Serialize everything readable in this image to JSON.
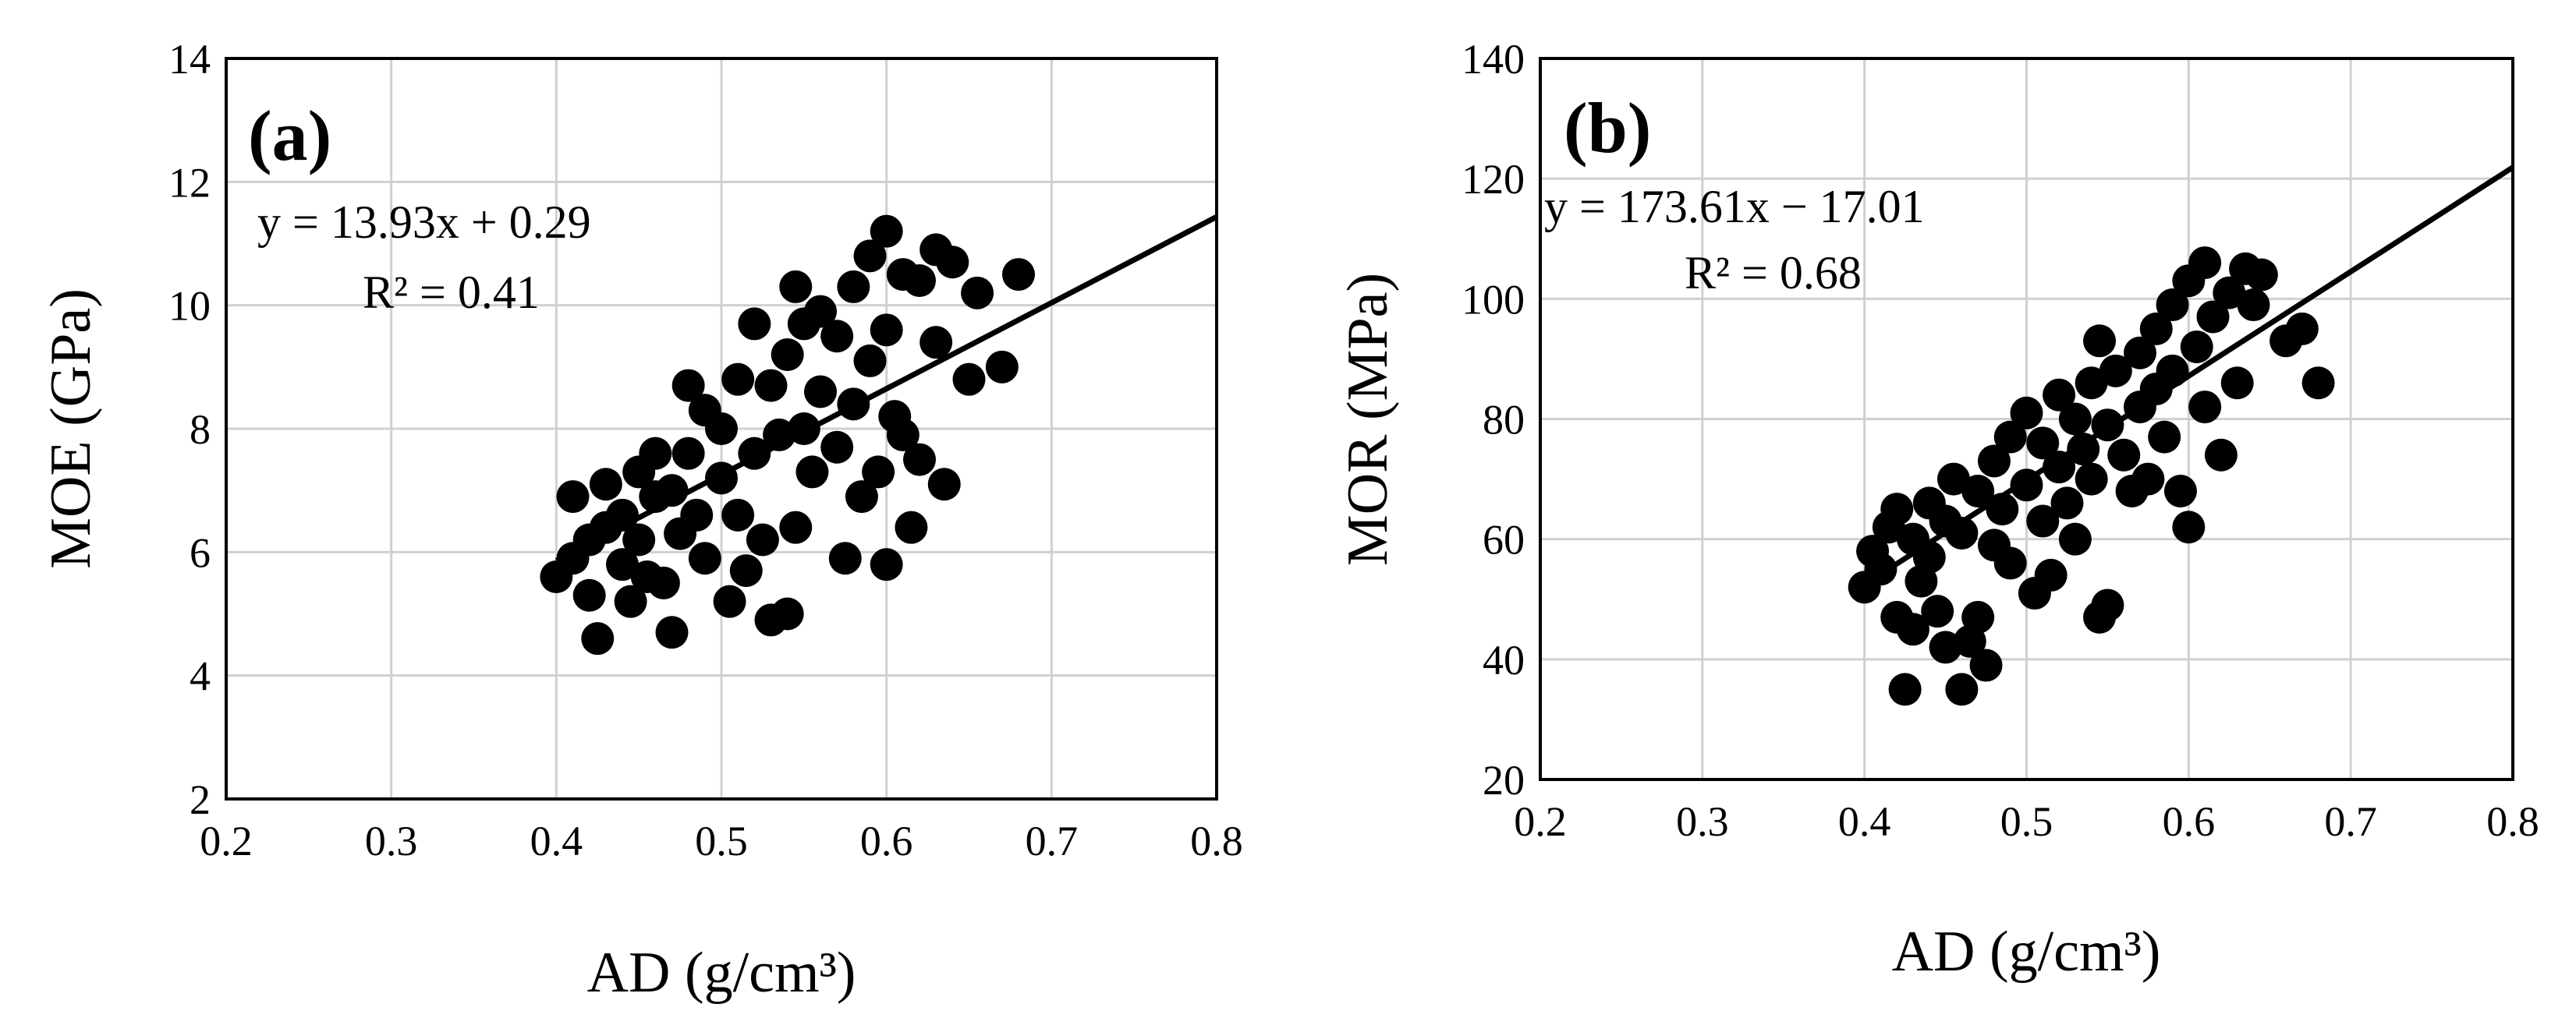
{
  "chart_data": [
    {
      "type": "scatter",
      "panel_label": "(a)",
      "xlabel": "AD (g/cm³)",
      "ylabel": "MOE (GPa)",
      "xlim": [
        0.2,
        0.8
      ],
      "ylim": [
        2,
        14
      ],
      "xticks": [
        "0.2",
        "0.3",
        "0.4",
        "0.5",
        "0.6",
        "0.7",
        "0.8"
      ],
      "yticks": [
        "2",
        "4",
        "6",
        "8",
        "10",
        "12",
        "14"
      ],
      "grid": true,
      "equation": "y = 13.93x + 0.29",
      "r2": "R² = 0.41",
      "trendline": {
        "slope": 13.93,
        "intercept": 0.29,
        "x_range": [
          0.4,
          0.8
        ]
      },
      "series": [
        {
          "points": [
            [
              0.4,
              5.6
            ],
            [
              0.41,
              5.9
            ],
            [
              0.41,
              6.9
            ],
            [
              0.42,
              6.2
            ],
            [
              0.42,
              5.3
            ],
            [
              0.425,
              4.6
            ],
            [
              0.43,
              7.1
            ],
            [
              0.43,
              6.4
            ],
            [
              0.44,
              5.8
            ],
            [
              0.44,
              6.6
            ],
            [
              0.445,
              5.2
            ],
            [
              0.45,
              7.3
            ],
            [
              0.45,
              6.2
            ],
            [
              0.455,
              5.6
            ],
            [
              0.46,
              7.6
            ],
            [
              0.46,
              6.9
            ],
            [
              0.465,
              5.5
            ],
            [
              0.47,
              4.7
            ],
            [
              0.47,
              7.0
            ],
            [
              0.475,
              6.3
            ],
            [
              0.48,
              8.7
            ],
            [
              0.48,
              7.6
            ],
            [
              0.485,
              6.6
            ],
            [
              0.49,
              8.3
            ],
            [
              0.49,
              5.9
            ],
            [
              0.5,
              8.0
            ],
            [
              0.5,
              7.2
            ],
            [
              0.505,
              5.2
            ],
            [
              0.51,
              8.8
            ],
            [
              0.51,
              6.6
            ],
            [
              0.515,
              5.7
            ],
            [
              0.52,
              9.7
            ],
            [
              0.52,
              7.6
            ],
            [
              0.525,
              6.2
            ],
            [
              0.53,
              8.7
            ],
            [
              0.53,
              4.9
            ],
            [
              0.535,
              7.9
            ],
            [
              0.54,
              9.2
            ],
            [
              0.54,
              5.0
            ],
            [
              0.545,
              10.3
            ],
            [
              0.545,
              6.4
            ],
            [
              0.55,
              9.7
            ],
            [
              0.55,
              8.0
            ],
            [
              0.555,
              7.3
            ],
            [
              0.56,
              9.9
            ],
            [
              0.56,
              8.6
            ],
            [
              0.57,
              9.5
            ],
            [
              0.57,
              7.7
            ],
            [
              0.575,
              5.9
            ],
            [
              0.58,
              10.3
            ],
            [
              0.58,
              8.4
            ],
            [
              0.585,
              6.9
            ],
            [
              0.59,
              10.8
            ],
            [
              0.59,
              9.1
            ],
            [
              0.595,
              7.3
            ],
            [
              0.6,
              11.2
            ],
            [
              0.6,
              9.6
            ],
            [
              0.6,
              5.8
            ],
            [
              0.605,
              8.2
            ],
            [
              0.61,
              10.5
            ],
            [
              0.61,
              7.9
            ],
            [
              0.615,
              6.4
            ],
            [
              0.62,
              10.4
            ],
            [
              0.62,
              7.5
            ],
            [
              0.63,
              10.9
            ],
            [
              0.63,
              9.4
            ],
            [
              0.635,
              7.1
            ],
            [
              0.64,
              10.7
            ],
            [
              0.65,
              8.8
            ],
            [
              0.655,
              10.2
            ],
            [
              0.67,
              9.0
            ],
            [
              0.68,
              10.5
            ]
          ]
        }
      ]
    },
    {
      "type": "scatter",
      "panel_label": "(b)",
      "xlabel": "AD (g/cm³)",
      "ylabel": "MOR (MPa)",
      "xlim": [
        0.2,
        0.8
      ],
      "ylim": [
        20,
        140
      ],
      "xticks": [
        "0.2",
        "0.3",
        "0.4",
        "0.5",
        "0.6",
        "0.7",
        "0.8"
      ],
      "yticks": [
        "20",
        "40",
        "60",
        "80",
        "100",
        "120",
        "140"
      ],
      "grid": true,
      "equation": "y = 173.61x − 17.01",
      "r2": "R² = 0.68",
      "trendline": {
        "slope": 173.61,
        "intercept": -17.01,
        "x_range": [
          0.4,
          0.8
        ]
      },
      "series": [
        {
          "points": [
            [
              0.4,
              52
            ],
            [
              0.405,
              58
            ],
            [
              0.41,
              55
            ],
            [
              0.415,
              62
            ],
            [
              0.42,
              47
            ],
            [
              0.42,
              65
            ],
            [
              0.425,
              35
            ],
            [
              0.43,
              60
            ],
            [
              0.43,
              45
            ],
            [
              0.435,
              53
            ],
            [
              0.44,
              66
            ],
            [
              0.44,
              57
            ],
            [
              0.445,
              48
            ],
            [
              0.45,
              63
            ],
            [
              0.45,
              42
            ],
            [
              0.455,
              70
            ],
            [
              0.46,
              35
            ],
            [
              0.46,
              61
            ],
            [
              0.465,
              43
            ],
            [
              0.47,
              47
            ],
            [
              0.47,
              68
            ],
            [
              0.475,
              39
            ],
            [
              0.48,
              73
            ],
            [
              0.48,
              59
            ],
            [
              0.485,
              65
            ],
            [
              0.49,
              77
            ],
            [
              0.49,
              56
            ],
            [
              0.5,
              81
            ],
            [
              0.5,
              69
            ],
            [
              0.505,
              51
            ],
            [
              0.51,
              76
            ],
            [
              0.51,
              63
            ],
            [
              0.515,
              54
            ],
            [
              0.52,
              84
            ],
            [
              0.52,
              72
            ],
            [
              0.525,
              66
            ],
            [
              0.53,
              80
            ],
            [
              0.53,
              60
            ],
            [
              0.535,
              75
            ],
            [
              0.54,
              86
            ],
            [
              0.54,
              70
            ],
            [
              0.545,
              93
            ],
            [
              0.545,
              47
            ],
            [
              0.55,
              79
            ],
            [
              0.55,
              49
            ],
            [
              0.555,
              88
            ],
            [
              0.56,
              74
            ],
            [
              0.565,
              68
            ],
            [
              0.57,
              91
            ],
            [
              0.57,
              82
            ],
            [
              0.575,
              70
            ],
            [
              0.58,
              95
            ],
            [
              0.58,
              85
            ],
            [
              0.585,
              77
            ],
            [
              0.59,
              99
            ],
            [
              0.59,
              88
            ],
            [
              0.595,
              68
            ],
            [
              0.6,
              103
            ],
            [
              0.6,
              62
            ],
            [
              0.605,
              92
            ],
            [
              0.61,
              106
            ],
            [
              0.61,
              82
            ],
            [
              0.615,
              97
            ],
            [
              0.62,
              74
            ],
            [
              0.625,
              101
            ],
            [
              0.63,
              86
            ],
            [
              0.635,
              105
            ],
            [
              0.64,
              99
            ],
            [
              0.645,
              104
            ],
            [
              0.66,
              93
            ],
            [
              0.67,
              95
            ],
            [
              0.68,
              86
            ]
          ]
        }
      ]
    }
  ]
}
